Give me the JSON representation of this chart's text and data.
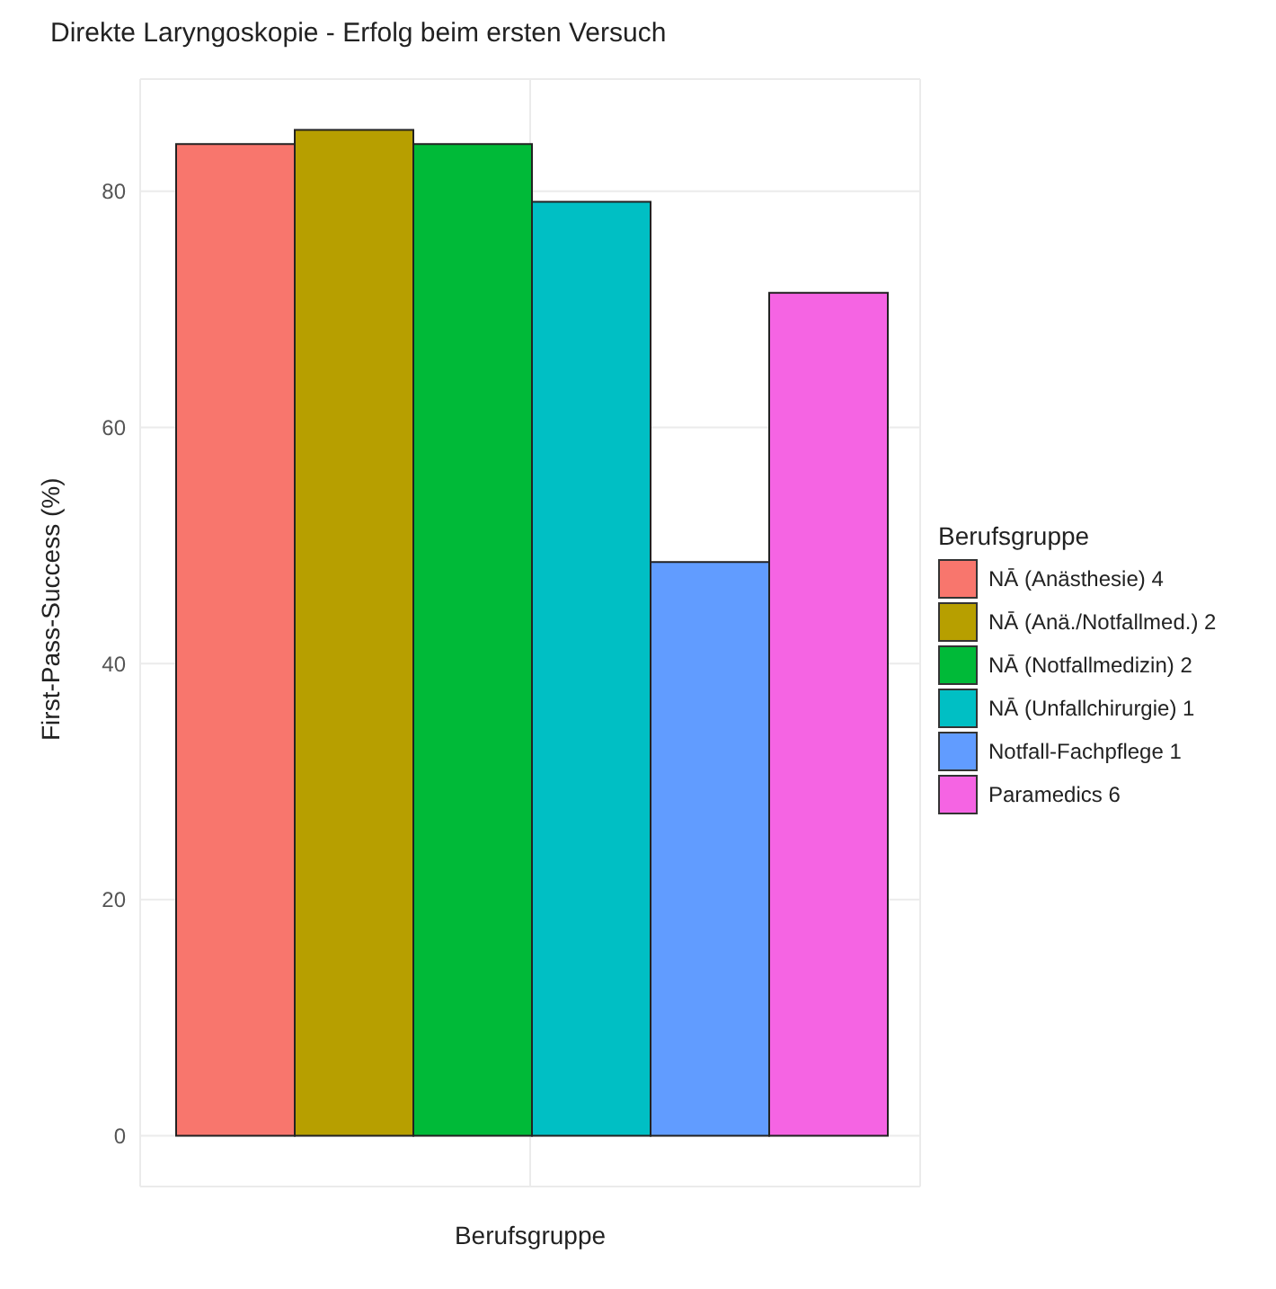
{
  "chart_data": {
    "type": "bar",
    "title": "Direkte Laryngoskopie - Erfolg beim ersten Versuch",
    "xlabel": "Berufsgruppe",
    "ylabel": "First-Pass-Success (%)",
    "legend_title": "Berufsgruppe",
    "categories": [
      null
    ],
    "series": [
      {
        "name": "NĀ (Anästhesie) 4",
        "color": "#f8766d",
        "values": [
          84.0
        ]
      },
      {
        "name": "NĀ (Anä./Notfallmed.) 2",
        "color": "#b79f00",
        "values": [
          85.2
        ]
      },
      {
        "name": "NĀ (Notfallmedizin) 2",
        "color": "#00ba38",
        "values": [
          84.0
        ]
      },
      {
        "name": "NĀ (Unfallchirurgie) 1",
        "color": "#00bfc4",
        "values": [
          79.1
        ]
      },
      {
        "name": "Notfall-Fachpflege 1",
        "color": "#619cff",
        "values": [
          48.6
        ]
      },
      {
        "name": "Paramedics 6",
        "color": "#f564e3",
        "values": [
          71.4
        ]
      }
    ],
    "ylim": [
      -4.3,
      89.5
    ],
    "yticks": [
      0,
      20,
      40,
      60,
      80
    ],
    "grid": true,
    "legend": "right"
  }
}
